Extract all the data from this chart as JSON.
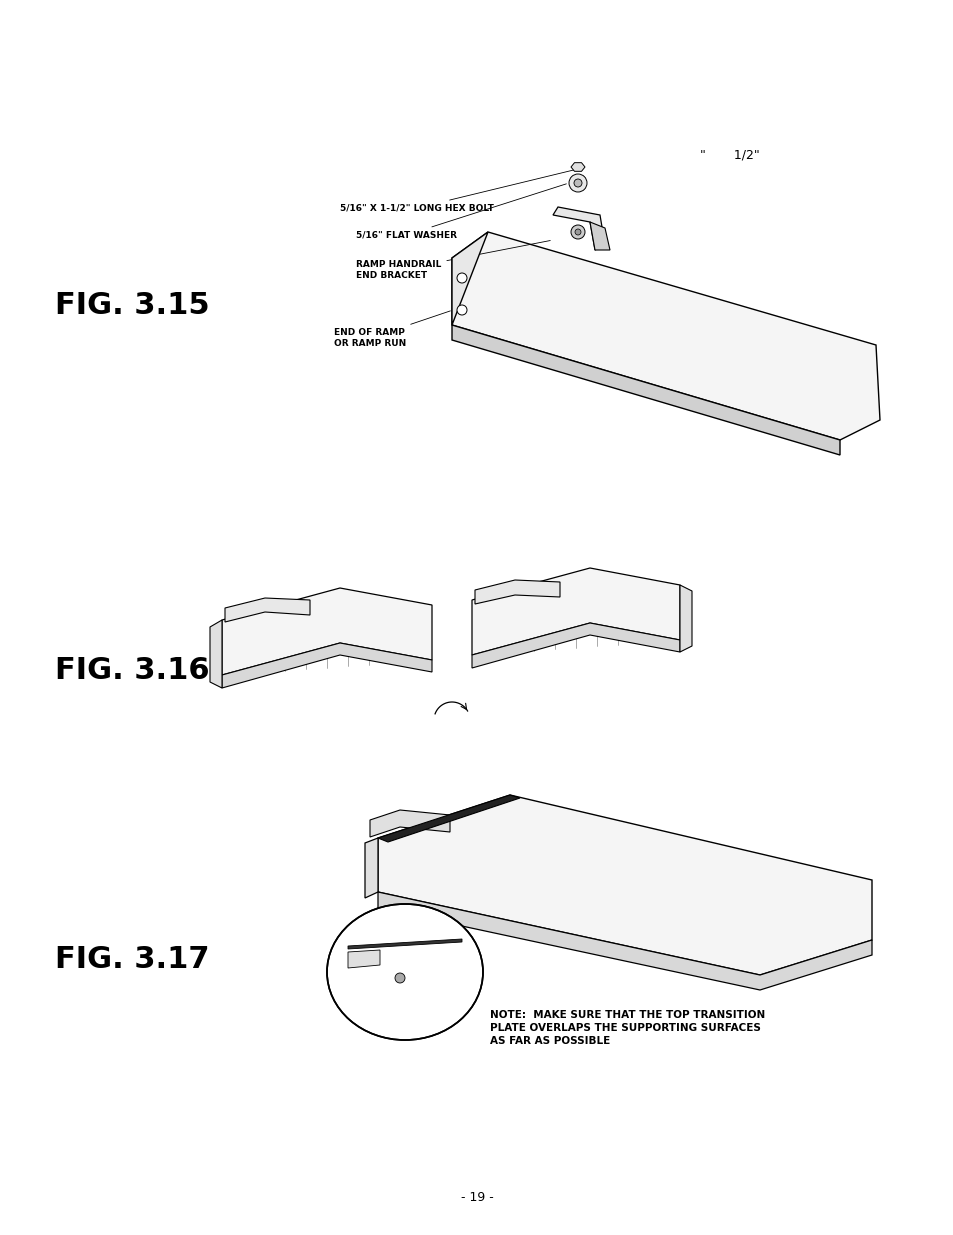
{
  "page_number": "- 19 -",
  "background_color": "#ffffff",
  "fig_label_color": "#000000",
  "fig_label_fontsize": 22,
  "annotation_fontsize": 6.5,
  "note_fontsize": 7.5,
  "top_note_text": "\"       1/2\"",
  "fig315_label": "FIG. 3.15",
  "fig316_label": "FIG. 3.16",
  "fig317_label": "FIG. 3.17",
  "note_317": "NOTE:  MAKE SURE THAT THE TOP TRANSITION\nPLATE OVERLAPS THE SUPPORTING SURFACES\nAS FAR AS POSSIBLE"
}
